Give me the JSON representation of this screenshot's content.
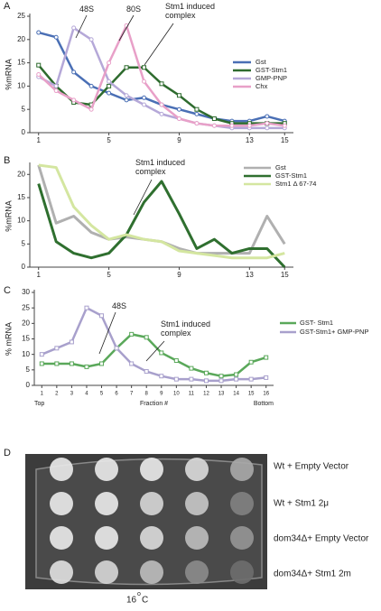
{
  "chart_data": [
    {
      "type": "line",
      "label": "A",
      "y_label": "%mRNA",
      "x": [
        1,
        2,
        3,
        4,
        5,
        6,
        7,
        8,
        9,
        10,
        11,
        12,
        13,
        14,
        15
      ],
      "xlim": [
        0.5,
        15.5
      ],
      "xticks": [
        1,
        5,
        9,
        13,
        15
      ],
      "ylim": [
        0,
        25
      ],
      "yticks": [
        0,
        5,
        10,
        15,
        20,
        25
      ],
      "annotations": [
        "48S",
        "80S",
        "Stm1 induced complex"
      ],
      "series": [
        {
          "name": "Gst",
          "color": "#4a6fb5",
          "marker": "circle",
          "values": [
            21.5,
            20.5,
            13,
            10,
            8.5,
            7,
            7.5,
            6,
            5,
            4,
            3,
            2.5,
            2.5,
            3.5,
            2.5
          ]
        },
        {
          "name": "GST-Stm1",
          "color": "#2e6b2e",
          "marker": "square",
          "values": [
            14.5,
            10,
            6.5,
            6,
            10,
            14,
            14,
            10.5,
            8,
            5,
            3,
            2,
            2,
            2,
            2
          ]
        },
        {
          "name": "GMP-PNP",
          "color": "#b5a8d8",
          "marker": "circle",
          "values": [
            12,
            10,
            22.5,
            20,
            11,
            8,
            6,
            4,
            3,
            2,
            1.5,
            1,
            1,
            1,
            1
          ]
        },
        {
          "name": "Chx",
          "color": "#e8a0c8",
          "marker": "circle",
          "values": [
            12.5,
            9,
            7,
            5,
            15,
            23,
            11,
            6,
            3,
            2,
            1.5,
            1.5,
            1.5,
            2,
            1.5
          ]
        }
      ]
    },
    {
      "type": "line",
      "label": "B",
      "y_label": "%mRNA",
      "x": [
        1,
        2,
        3,
        4,
        5,
        6,
        7,
        8,
        9,
        10,
        11,
        12,
        13,
        14,
        15
      ],
      "xlim": [
        0.5,
        15.5
      ],
      "xticks": [
        1,
        5,
        9,
        13,
        15
      ],
      "ylim": [
        0,
        22
      ],
      "yticks": [
        0,
        5,
        10,
        15,
        20
      ],
      "annotations": [
        "Stm1 induced complex"
      ],
      "series": [
        {
          "name": "Gst",
          "color": "#b0b0b0",
          "marker": "none",
          "values": [
            22,
            9.5,
            11,
            7.5,
            6,
            6.5,
            6,
            5.5,
            4,
            3,
            3,
            3,
            3,
            11,
            5
          ]
        },
        {
          "name": "GST-Stm1",
          "color": "#2f6f2f",
          "marker": "none",
          "values": [
            18,
            5.5,
            3,
            2,
            3,
            7,
            14,
            18.5,
            11.5,
            4,
            6,
            3,
            4,
            4,
            0
          ]
        },
        {
          "name": "Stm1 Δ 67-74",
          "color": "#d4e6a0",
          "marker": "none",
          "values": [
            22,
            21.5,
            13,
            9,
            6,
            7,
            6,
            5.5,
            3.5,
            3,
            2.5,
            2,
            2,
            2,
            3
          ]
        }
      ]
    },
    {
      "type": "line",
      "label": "C",
      "y_label": "% mRNA",
      "x_label": "Fraction #",
      "x_start_label": "Top",
      "x_end_label": "Bottom",
      "x": [
        1,
        2,
        3,
        4,
        5,
        6,
        7,
        8,
        9,
        10,
        11,
        12,
        13,
        14,
        15,
        16
      ],
      "xlim": [
        0.5,
        16.5
      ],
      "xticks": [
        1,
        2,
        3,
        4,
        5,
        6,
        7,
        8,
        9,
        10,
        11,
        12,
        13,
        14,
        15,
        16
      ],
      "ylim": [
        0,
        30
      ],
      "yticks": [
        0,
        5,
        10,
        15,
        20,
        25,
        30
      ],
      "annotations": [
        "48S",
        "Stm1 induced complex"
      ],
      "series": [
        {
          "name": "GST- Stm1",
          "color": "#5aa85a",
          "marker": "square",
          "values": [
            7,
            7,
            7,
            6,
            7,
            12,
            16.5,
            15.5,
            10.5,
            8,
            5.5,
            4,
            3,
            3.5,
            7.5,
            9
          ]
        },
        {
          "name": "GST-Stm1+ GMP-PNP",
          "color": "#a8a0cc",
          "marker": "square",
          "values": [
            10,
            12,
            14,
            25,
            22.5,
            12,
            7,
            4.5,
            3,
            2,
            2,
            1.5,
            1.5,
            2,
            2,
            2.5
          ]
        }
      ]
    }
  ],
  "panel_d": {
    "label": "D",
    "rows": [
      "Wt + Empty Vector",
      "Wt + Stm1 2μ",
      "dom34Δ+ Empty Vector",
      "dom34Δ+ Stm1 2m"
    ],
    "temperature": "16",
    "degree": "o",
    "unit": "C"
  }
}
